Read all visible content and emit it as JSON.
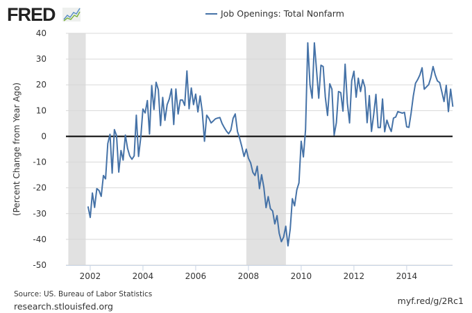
{
  "logo_text": "FRED",
  "chart_data": {
    "type": "line",
    "title": "Job Openings: Total Nonfarm",
    "xlabel": "",
    "ylabel": "(Percent Change from Year Ago)",
    "ylim": [
      -50,
      40
    ],
    "xlim": [
      2001.08,
      2015.74
    ],
    "yticks": [
      -50,
      -40,
      -30,
      -20,
      -10,
      0,
      10,
      20,
      30,
      40
    ],
    "xticks": [
      2002,
      2004,
      2006,
      2008,
      2010,
      2012,
      2014
    ],
    "grid": true,
    "legend_position": "top-center",
    "recessions": [
      [
        2001.17,
        2001.83
      ],
      [
        2007.92,
        2009.42
      ]
    ],
    "series": [
      {
        "name": "Job Openings: Total Nonfarm",
        "color": "#4572a7",
        "start": "2001-12",
        "frequency": "monthly",
        "values": [
          -27.2,
          -31.5,
          -22,
          -27.6,
          -20.3,
          -21,
          -23.3,
          -15.2,
          -16.5,
          -2.8,
          0.8,
          -14.3,
          2.6,
          0.3,
          -13.9,
          -5.5,
          -9.2,
          0.5,
          -4.7,
          -7.6,
          -8.9,
          -7.6,
          8.2,
          -7.8,
          -0.4,
          10.6,
          9.1,
          13.9,
          0.9,
          19.7,
          10.4,
          21,
          18.1,
          4.2,
          15.1,
          6.2,
          12.3,
          14.5,
          18.4,
          4.6,
          18.4,
          8.7,
          14.1,
          14.1,
          12,
          25.4,
          10.7,
          18.8,
          12.3,
          16.4,
          9.5,
          15.7,
          9.6,
          -1.9,
          8.2,
          7,
          5.2,
          6,
          6.8,
          7.1,
          7.3,
          5,
          3.4,
          2,
          1,
          2.4,
          7,
          8.7,
          1.9,
          -0.8,
          -4,
          -7.8,
          -5,
          -8.5,
          -10.3,
          -14,
          -15.2,
          -11.6,
          -20.3,
          -14.9,
          -19.8,
          -27.7,
          -23.4,
          -28.1,
          -29,
          -34,
          -30.8,
          -37.6,
          -40.9,
          -39.1,
          -34.9,
          -42.5,
          -36,
          -24.2,
          -27,
          -20.8,
          -18.1,
          -1.9,
          -8,
          2.6,
          36.3,
          20.1,
          14.8,
          36.3,
          25.5,
          14.8,
          27.6,
          27.1,
          15.2,
          8.1,
          20.4,
          18.3,
          0.5,
          5.3,
          17.4,
          17,
          9.8,
          28,
          13,
          5.2,
          21.6,
          25.3,
          15.2,
          22.6,
          17.4,
          22,
          19.1,
          5.3,
          15.8,
          1.9,
          8.5,
          16.3,
          3.4,
          3.4,
          14.5,
          1.8,
          6.3,
          3.7,
          1.9,
          7.1,
          7.5,
          9.6,
          9.3,
          9,
          9.3,
          3.7,
          3.5,
          8.9,
          15.6,
          20.6,
          22,
          23.8,
          26.6,
          18.3,
          19.2,
          20.1,
          22.8,
          27.1,
          23.8,
          21.5,
          20.9,
          17.3,
          13.5,
          19.8,
          9.6,
          18.3,
          11.5
        ]
      }
    ],
    "recession_color": "#e1e1e1",
    "zero_line_color": "#000000"
  },
  "footer": {
    "source": "Source: US. Bureau of Labor Statistics",
    "site": "research.stlouisfed.org",
    "short_link": "myf.red/g/2Rc1"
  }
}
